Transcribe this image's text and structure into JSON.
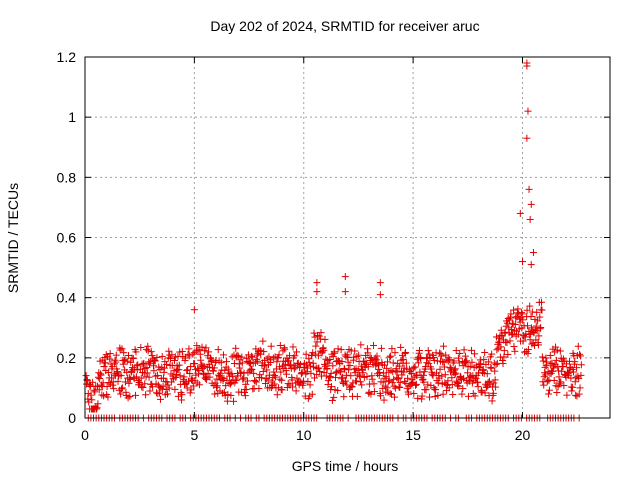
{
  "chart_data": {
    "type": "scatter",
    "title": "Day 202 of 2024, SRMTID for receiver aruc",
    "xlabel": "GPS time / hours",
    "ylabel": "SRMTID / TECUs",
    "xlim": [
      0,
      24
    ],
    "ylim": [
      0,
      1.2
    ],
    "xticks": [
      0,
      5,
      10,
      15,
      20
    ],
    "xtick_labels": [
      "0",
      "5",
      "10",
      "15",
      "20"
    ],
    "yticks": [
      0,
      0.2,
      0.4,
      0.6,
      0.8,
      1.0,
      1.2
    ],
    "ytick_labels": [
      "0",
      "0.2",
      "0.4",
      "0.6",
      "0.8",
      "1",
      "1.2"
    ],
    "grid": true,
    "marker": "plus",
    "marker_color": "#e00000",
    "time_range_hours": [
      0.05,
      22.7
    ],
    "series": [
      {
        "name": "SRMTID",
        "baseline_value": 0.15,
        "notable_points": [
          {
            "x": 5.0,
            "y": 0.36
          },
          {
            "x": 10.6,
            "y": 0.45
          },
          {
            "x": 10.6,
            "y": 0.42
          },
          {
            "x": 11.9,
            "y": 0.47
          },
          {
            "x": 11.9,
            "y": 0.42
          },
          {
            "x": 13.5,
            "y": 0.45
          },
          {
            "x": 13.5,
            "y": 0.41
          },
          {
            "x": 19.9,
            "y": 0.68
          },
          {
            "x": 20.0,
            "y": 0.52
          },
          {
            "x": 20.2,
            "y": 1.18
          },
          {
            "x": 20.2,
            "y": 1.17
          },
          {
            "x": 20.25,
            "y": 1.02
          },
          {
            "x": 20.2,
            "y": 0.93
          },
          {
            "x": 20.3,
            "y": 0.76
          },
          {
            "x": 20.4,
            "y": 0.71
          },
          {
            "x": 20.35,
            "y": 0.66
          },
          {
            "x": 20.5,
            "y": 0.55
          },
          {
            "x": 20.4,
            "y": 0.51
          }
        ]
      }
    ]
  }
}
